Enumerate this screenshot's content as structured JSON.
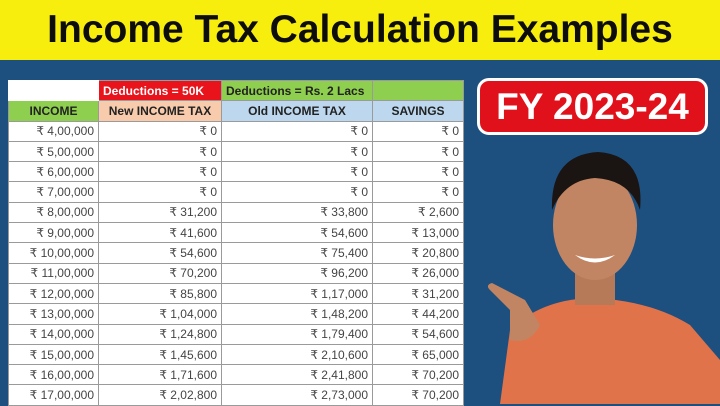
{
  "title": "Income Tax Calculation Examples",
  "badge": "FY 2023-24",
  "table": {
    "group_headers": {
      "new": "Deductions = 50K",
      "old": "Deductions = Rs. 2 Lacs"
    },
    "columns": [
      "INCOME",
      "New INCOME TAX",
      "Old INCOME TAX",
      "SAVINGS"
    ],
    "rows": [
      [
        "₹ 4,00,000",
        "₹ 0",
        "₹ 0",
        "₹ 0"
      ],
      [
        "₹ 5,00,000",
        "₹ 0",
        "₹ 0",
        "₹ 0"
      ],
      [
        "₹ 6,00,000",
        "₹ 0",
        "₹ 0",
        "₹ 0"
      ],
      [
        "₹ 7,00,000",
        "₹ 0",
        "₹ 0",
        "₹ 0"
      ],
      [
        "₹ 8,00,000",
        "₹ 31,200",
        "₹ 33,800",
        "₹ 2,600"
      ],
      [
        "₹ 9,00,000",
        "₹ 41,600",
        "₹ 54,600",
        "₹ 13,000"
      ],
      [
        "₹ 10,00,000",
        "₹ 54,600",
        "₹ 75,400",
        "₹ 20,800"
      ],
      [
        "₹ 11,00,000",
        "₹ 70,200",
        "₹ 96,200",
        "₹ 26,000"
      ],
      [
        "₹ 12,00,000",
        "₹ 85,800",
        "₹ 1,17,000",
        "₹ 31,200"
      ],
      [
        "₹ 13,00,000",
        "₹ 1,04,000",
        "₹ 1,48,200",
        "₹ 44,200"
      ],
      [
        "₹ 14,00,000",
        "₹ 1,24,800",
        "₹ 1,79,400",
        "₹ 54,600"
      ],
      [
        "₹ 15,00,000",
        "₹ 1,45,600",
        "₹ 2,10,600",
        "₹ 65,000"
      ],
      [
        "₹ 16,00,000",
        "₹ 1,71,600",
        "₹ 2,41,800",
        "₹ 70,200"
      ],
      [
        "₹ 17,00,000",
        "₹ 2,02,800",
        "₹ 2,73,000",
        "₹ 70,200"
      ]
    ]
  },
  "colors": {
    "title_bg": "#f7ee0e",
    "bg": "#1d4f7f",
    "badge": "#e0111b",
    "red_header": "#e8131b",
    "green_header": "#8fcf4f",
    "peach_header": "#f8cbad",
    "blue_header": "#bdd7ee"
  }
}
